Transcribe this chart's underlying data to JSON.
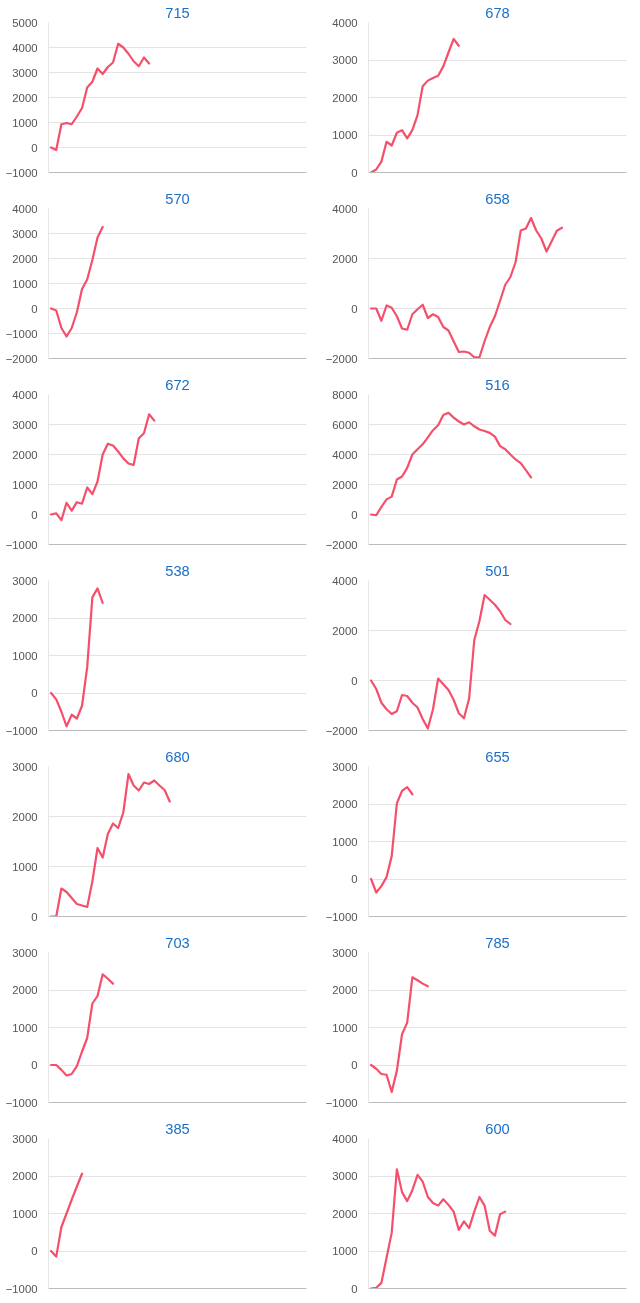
{
  "chart_data": [
    {
      "type": "line",
      "title": "715",
      "grid": "y",
      "tick_labels": "y",
      "ylim": [
        -1000,
        5000
      ],
      "yticks": [
        -1000,
        0,
        1000,
        2000,
        3000,
        4000,
        5000
      ],
      "categories": [
        null,
        null,
        null,
        null,
        null,
        null,
        null,
        null,
        null,
        null,
        null,
        null,
        null,
        null,
        null,
        null,
        null,
        null,
        null,
        null,
        null,
        null,
        null,
        null,
        null,
        null,
        null,
        null,
        null,
        null,
        null,
        null,
        null,
        null,
        null,
        null,
        null,
        null,
        null,
        null,
        null,
        null,
        null,
        null,
        null,
        null,
        null,
        null,
        null,
        null
      ],
      "series": [
        {
          "color": "#f4506c",
          "values": [
            0,
            -100,
            930,
            980,
            930,
            1240,
            1580,
            2400,
            2630,
            3160,
            2940,
            3220,
            3400,
            4150,
            4000,
            3750,
            3450,
            3250,
            3600,
            3360,
            null,
            null,
            null,
            null,
            null,
            null,
            null,
            null,
            null,
            null,
            null,
            null,
            null,
            null,
            null,
            null,
            null,
            null,
            null,
            null,
            null,
            null,
            null,
            null,
            null,
            null,
            null,
            null,
            null,
            null
          ]
        }
      ]
    },
    {
      "type": "line",
      "title": "678",
      "grid": "y",
      "tick_labels": "y",
      "ylim": [
        0,
        4000
      ],
      "yticks": [
        0,
        1000,
        2000,
        3000,
        4000
      ],
      "categories": [
        null,
        null,
        null,
        null,
        null,
        null,
        null,
        null,
        null,
        null,
        null,
        null,
        null,
        null,
        null,
        null,
        null,
        null,
        null,
        null,
        null,
        null,
        null,
        null,
        null,
        null,
        null,
        null,
        null,
        null,
        null,
        null,
        null,
        null,
        null,
        null,
        null,
        null,
        null,
        null,
        null,
        null,
        null,
        null,
        null,
        null,
        null,
        null,
        null,
        null
      ],
      "series": [
        {
          "color": "#f4506c",
          "values": [
            0,
            80,
            290,
            820,
            720,
            1060,
            1130,
            910,
            1130,
            1530,
            2300,
            2450,
            2520,
            2580,
            2830,
            3200,
            3560,
            3380,
            null,
            null,
            null,
            null,
            null,
            null,
            null,
            null,
            null,
            null,
            null,
            null,
            null,
            null,
            null,
            null,
            null,
            null,
            null,
            null,
            null,
            null,
            null,
            null,
            null,
            null,
            null,
            null,
            null,
            null,
            null,
            null
          ]
        }
      ]
    },
    {
      "type": "line",
      "title": "570",
      "grid": "y",
      "tick_labels": "y",
      "ylim": [
        -2000,
        4000
      ],
      "yticks": [
        -2000,
        -1000,
        0,
        1000,
        2000,
        3000,
        4000
      ],
      "categories": [
        null,
        null,
        null,
        null,
        null,
        null,
        null,
        null,
        null,
        null,
        null,
        null,
        null,
        null,
        null,
        null,
        null,
        null,
        null,
        null,
        null,
        null,
        null,
        null,
        null,
        null,
        null,
        null,
        null,
        null,
        null,
        null,
        null,
        null,
        null,
        null,
        null,
        null,
        null,
        null,
        null,
        null,
        null,
        null,
        null,
        null,
        null,
        null,
        null,
        null
      ],
      "series": [
        {
          "color": "#f4506c",
          "values": [
            0,
            -80,
            -780,
            -1120,
            -780,
            -150,
            780,
            1160,
            1940,
            2840,
            3260,
            null,
            null,
            null,
            null,
            null,
            null,
            null,
            null,
            null,
            null,
            null,
            null,
            null,
            null,
            null,
            null,
            null,
            null,
            null,
            null,
            null,
            null,
            null,
            null,
            null,
            null,
            null,
            null,
            null,
            null,
            null,
            null,
            null,
            null,
            null,
            null,
            null,
            null,
            null
          ]
        }
      ]
    },
    {
      "type": "line",
      "title": "658",
      "grid": "y",
      "tick_labels": "y",
      "ylim": [
        -2000,
        4000
      ],
      "yticks": [
        -2000,
        0,
        2000,
        4000
      ],
      "categories": [
        null,
        null,
        null,
        null,
        null,
        null,
        null,
        null,
        null,
        null,
        null,
        null,
        null,
        null,
        null,
        null,
        null,
        null,
        null,
        null,
        null,
        null,
        null,
        null,
        null,
        null,
        null,
        null,
        null,
        null,
        null,
        null,
        null,
        null,
        null,
        null,
        null,
        null,
        null,
        null,
        null,
        null,
        null,
        null,
        null,
        null,
        null,
        null,
        null,
        null
      ],
      "series": [
        {
          "color": "#f4506c",
          "values": [
            0,
            0,
            -490,
            120,
            30,
            -310,
            -800,
            -850,
            -230,
            -30,
            150,
            -380,
            -230,
            -340,
            -740,
            -880,
            -1310,
            -1740,
            -1720,
            -1770,
            -1950,
            -1950,
            -1310,
            -740,
            -310,
            310,
            950,
            1260,
            1850,
            3120,
            3200,
            3620,
            3120,
            2800,
            2280,
            2690,
            3110,
            3230,
            null,
            null,
            null,
            null,
            null,
            null,
            null,
            null,
            null,
            null,
            null,
            null
          ]
        }
      ]
    },
    {
      "type": "line",
      "title": "672",
      "grid": "y",
      "tick_labels": "y",
      "ylim": [
        -1000,
        4000
      ],
      "yticks": [
        -1000,
        0,
        1000,
        2000,
        3000,
        4000
      ],
      "categories": [
        null,
        null,
        null,
        null,
        null,
        null,
        null,
        null,
        null,
        null,
        null,
        null,
        null,
        null,
        null,
        null,
        null,
        null,
        null,
        null,
        null,
        null,
        null,
        null,
        null,
        null,
        null,
        null,
        null,
        null,
        null,
        null,
        null,
        null,
        null,
        null,
        null,
        null,
        null,
        null,
        null,
        null,
        null,
        null,
        null,
        null,
        null,
        null,
        null,
        null
      ],
      "series": [
        {
          "color": "#f4506c",
          "values": [
            0,
            40,
            -190,
            390,
            130,
            410,
            360,
            900,
            680,
            1100,
            2000,
            2360,
            2300,
            2100,
            1870,
            1700,
            1650,
            2540,
            2710,
            3340,
            3130,
            null,
            null,
            null,
            null,
            null,
            null,
            null,
            null,
            null,
            null,
            null,
            null,
            null,
            null,
            null,
            null,
            null,
            null,
            null,
            null,
            null,
            null,
            null,
            null,
            null,
            null,
            null,
            null,
            null
          ]
        }
      ]
    },
    {
      "type": "line",
      "title": "516",
      "grid": "y",
      "tick_labels": "y",
      "ylim": [
        -2000,
        8000
      ],
      "yticks": [
        -2000,
        0,
        2000,
        4000,
        6000,
        8000
      ],
      "categories": [
        null,
        null,
        null,
        null,
        null,
        null,
        null,
        null,
        null,
        null,
        null,
        null,
        null,
        null,
        null,
        null,
        null,
        null,
        null,
        null,
        null,
        null,
        null,
        null,
        null,
        null,
        null,
        null,
        null,
        null,
        null,
        null,
        null,
        null,
        null,
        null,
        null,
        null,
        null,
        null,
        null,
        null,
        null,
        null,
        null,
        null,
        null,
        null,
        null,
        null
      ],
      "series": [
        {
          "color": "#f4506c",
          "values": [
            0,
            -50,
            510,
            1010,
            1190,
            2330,
            2530,
            3110,
            4000,
            4350,
            4680,
            5140,
            5620,
            5950,
            6630,
            6780,
            6460,
            6200,
            6000,
            6150,
            5880,
            5670,
            5570,
            5440,
            5190,
            4560,
            4350,
            4000,
            3670,
            3420,
            2960,
            2480,
            null,
            null,
            null,
            null,
            null,
            null,
            null,
            null,
            null,
            null,
            null,
            null,
            null,
            null,
            null,
            null,
            null,
            null
          ]
        }
      ]
    },
    {
      "type": "line",
      "title": "538",
      "grid": "y",
      "tick_labels": "y",
      "ylim": [
        -1000,
        3000
      ],
      "yticks": [
        -1000,
        0,
        1000,
        2000,
        3000
      ],
      "categories": [
        null,
        null,
        null,
        null,
        null,
        null,
        null,
        null,
        null,
        null,
        null,
        null,
        null,
        null,
        null,
        null,
        null,
        null,
        null,
        null,
        null,
        null,
        null,
        null,
        null,
        null,
        null,
        null,
        null,
        null,
        null,
        null,
        null,
        null,
        null,
        null,
        null,
        null,
        null,
        null,
        null,
        null,
        null,
        null,
        null,
        null,
        null,
        null,
        null,
        null
      ],
      "series": [
        {
          "color": "#f4506c",
          "values": [
            0,
            -170,
            -500,
            -890,
            -580,
            -680,
            -340,
            690,
            2550,
            2790,
            2400,
            null,
            null,
            null,
            null,
            null,
            null,
            null,
            null,
            null,
            null,
            null,
            null,
            null,
            null,
            null,
            null,
            null,
            null,
            null,
            null,
            null,
            null,
            null,
            null,
            null,
            null,
            null,
            null,
            null,
            null,
            null,
            null,
            null,
            null,
            null,
            null,
            null,
            null,
            null
          ]
        }
      ]
    },
    {
      "type": "line",
      "title": "501",
      "grid": "y",
      "tick_labels": "y",
      "ylim": [
        -2000,
        4000
      ],
      "yticks": [
        -2000,
        0,
        2000,
        4000
      ],
      "categories": [
        null,
        null,
        null,
        null,
        null,
        null,
        null,
        null,
        null,
        null,
        null,
        null,
        null,
        null,
        null,
        null,
        null,
        null,
        null,
        null,
        null,
        null,
        null,
        null,
        null,
        null,
        null,
        null,
        null,
        null,
        null,
        null,
        null,
        null,
        null,
        null,
        null,
        null,
        null,
        null,
        null,
        null,
        null,
        null,
        null,
        null,
        null,
        null,
        null,
        null
      ],
      "series": [
        {
          "color": "#f4506c",
          "values": [
            0,
            -340,
            -890,
            -1150,
            -1340,
            -1230,
            -580,
            -620,
            -890,
            -1080,
            -1540,
            -1920,
            -1150,
            80,
            -150,
            -380,
            -770,
            -1310,
            -1510,
            -720,
            1620,
            2380,
            3420,
            3230,
            3030,
            2770,
            2420,
            2260,
            null,
            null,
            null,
            null,
            null,
            null,
            null,
            null,
            null,
            null,
            null,
            null,
            null,
            null,
            null,
            null,
            null,
            null,
            null,
            null,
            null,
            null
          ]
        }
      ]
    },
    {
      "type": "line",
      "title": "680",
      "grid": "y",
      "tick_labels": "y",
      "ylim": [
        0,
        3000
      ],
      "yticks": [
        0,
        1000,
        2000,
        3000
      ],
      "categories": [
        null,
        null,
        null,
        null,
        null,
        null,
        null,
        null,
        null,
        null,
        null,
        null,
        null,
        null,
        null,
        null,
        null,
        null,
        null,
        null,
        null,
        null,
        null,
        null,
        null,
        null,
        null,
        null,
        null,
        null,
        null,
        null,
        null,
        null,
        null,
        null,
        null,
        null,
        null,
        null,
        null,
        null,
        null,
        null,
        null,
        null,
        null,
        null,
        null,
        null
      ],
      "series": [
        {
          "color": "#f4506c",
          "values": [
            0,
            0,
            560,
            490,
            370,
            250,
            220,
            190,
            700,
            1370,
            1180,
            1650,
            1860,
            1770,
            2080,
            2850,
            2620,
            2520,
            2680,
            2650,
            2720,
            2620,
            2530,
            2300,
            null,
            null,
            null,
            null,
            null,
            null,
            null,
            null,
            null,
            null,
            null,
            null,
            null,
            null,
            null,
            null,
            null,
            null,
            null,
            null,
            null,
            null,
            null,
            null,
            null,
            null
          ]
        }
      ]
    },
    {
      "type": "line",
      "title": "655",
      "grid": "y",
      "tick_labels": "y",
      "ylim": [
        -1000,
        3000
      ],
      "yticks": [
        -1000,
        0,
        1000,
        2000,
        3000
      ],
      "categories": [
        null,
        null,
        null,
        null,
        null,
        null,
        null,
        null,
        null,
        null,
        null,
        null,
        null,
        null,
        null,
        null,
        null,
        null,
        null,
        null,
        null,
        null,
        null,
        null,
        null,
        null,
        null,
        null,
        null,
        null,
        null,
        null,
        null,
        null,
        null,
        null,
        null,
        null,
        null,
        null,
        null,
        null,
        null,
        null,
        null,
        null,
        null,
        null,
        null,
        null
      ],
      "series": [
        {
          "color": "#f4506c",
          "values": [
            0,
            -360,
            -190,
            50,
            610,
            2020,
            2350,
            2450,
            2260,
            null,
            null,
            null,
            null,
            null,
            null,
            null,
            null,
            null,
            null,
            null,
            null,
            null,
            null,
            null,
            null,
            null,
            null,
            null,
            null,
            null,
            null,
            null,
            null,
            null,
            null,
            null,
            null,
            null,
            null,
            null,
            null,
            null,
            null,
            null,
            null,
            null,
            null,
            null,
            null,
            null
          ]
        }
      ]
    },
    {
      "type": "line",
      "title": "703",
      "grid": "y",
      "tick_labels": "y",
      "ylim": [
        -1000,
        3000
      ],
      "yticks": [
        -1000,
        0,
        1000,
        2000,
        3000
      ],
      "categories": [
        null,
        null,
        null,
        null,
        null,
        null,
        null,
        null,
        null,
        null,
        null,
        null,
        null,
        null,
        null,
        null,
        null,
        null,
        null,
        null,
        null,
        null,
        null,
        null,
        null,
        null,
        null,
        null,
        null,
        null,
        null,
        null,
        null,
        null,
        null,
        null,
        null,
        null,
        null,
        null,
        null,
        null,
        null,
        null,
        null,
        null,
        null,
        null,
        null,
        null
      ],
      "series": [
        {
          "color": "#f4506c",
          "values": [
            0,
            0,
            -130,
            -280,
            -240,
            -30,
            360,
            720,
            1640,
            1840,
            2420,
            2300,
            2170,
            null,
            null,
            null,
            null,
            null,
            null,
            null,
            null,
            null,
            null,
            null,
            null,
            null,
            null,
            null,
            null,
            null,
            null,
            null,
            null,
            null,
            null,
            null,
            null,
            null,
            null,
            null,
            null,
            null,
            null,
            null,
            null,
            null,
            null,
            null,
            null,
            null
          ]
        }
      ]
    },
    {
      "type": "line",
      "title": "785",
      "grid": "y",
      "tick_labels": "y",
      "ylim": [
        -1000,
        3000
      ],
      "yticks": [
        -1000,
        0,
        1000,
        2000,
        3000
      ],
      "categories": [
        null,
        null,
        null,
        null,
        null,
        null,
        null,
        null,
        null,
        null,
        null,
        null,
        null,
        null,
        null,
        null,
        null,
        null,
        null,
        null,
        null,
        null,
        null,
        null,
        null,
        null,
        null,
        null,
        null,
        null,
        null,
        null,
        null,
        null,
        null,
        null,
        null,
        null,
        null,
        null,
        null,
        null,
        null,
        null,
        null,
        null,
        null,
        null,
        null,
        null
      ],
      "series": [
        {
          "color": "#f4506c",
          "values": [
            0,
            -100,
            -240,
            -260,
            -720,
            -150,
            820,
            1130,
            2340,
            2260,
            2170,
            2100,
            null,
            null,
            null,
            null,
            null,
            null,
            null,
            null,
            null,
            null,
            null,
            null,
            null,
            null,
            null,
            null,
            null,
            null,
            null,
            null,
            null,
            null,
            null,
            null,
            null,
            null,
            null,
            null,
            null,
            null,
            null,
            null,
            null,
            null,
            null,
            null,
            null,
            null
          ]
        }
      ]
    },
    {
      "type": "line",
      "title": "385",
      "grid": "y",
      "tick_labels": "y",
      "ylim": [
        -1000,
        3000
      ],
      "yticks": [
        -1000,
        0,
        1000,
        2000,
        3000
      ],
      "categories": [
        null,
        null,
        null,
        null,
        null,
        null,
        null,
        null,
        null,
        null,
        null,
        null,
        null,
        null,
        null,
        null,
        null,
        null,
        null,
        null,
        null,
        null,
        null,
        null,
        null,
        null,
        null,
        null,
        null,
        null,
        null,
        null,
        null,
        null,
        null,
        null,
        null,
        null,
        null,
        null,
        null,
        null,
        null,
        null,
        null,
        null,
        null,
        null,
        null,
        null
      ],
      "series": [
        {
          "color": "#f4506c",
          "values": [
            0,
            -150,
            640,
            1000,
            1370,
            1720,
            2060,
            null,
            null,
            null,
            null,
            null,
            null,
            null,
            null,
            null,
            null,
            null,
            null,
            null,
            null,
            null,
            null,
            null,
            null,
            null,
            null,
            null,
            null,
            null,
            null,
            null,
            null,
            null,
            null,
            null,
            null,
            null,
            null,
            null,
            null,
            null,
            null,
            null,
            null,
            null,
            null,
            null,
            null,
            null
          ]
        }
      ]
    },
    {
      "type": "line",
      "title": "600",
      "grid": "y",
      "tick_labels": "y",
      "ylim": [
        0,
        4000
      ],
      "yticks": [
        0,
        1000,
        2000,
        3000,
        4000
      ],
      "categories": [
        null,
        null,
        null,
        null,
        null,
        null,
        null,
        null,
        null,
        null,
        null,
        null,
        null,
        null,
        null,
        null,
        null,
        null,
        null,
        null,
        null,
        null,
        null,
        null,
        null,
        null,
        null,
        null,
        null,
        null,
        null,
        null,
        null,
        null,
        null,
        null,
        null,
        null,
        null,
        null,
        null,
        null,
        null,
        null,
        null,
        null,
        null,
        null,
        null,
        null
      ],
      "series": [
        {
          "color": "#f4506c",
          "values": [
            0,
            20,
            150,
            820,
            1490,
            3180,
            2570,
            2330,
            2620,
            3030,
            2850,
            2440,
            2280,
            2210,
            2380,
            2230,
            2050,
            1560,
            1790,
            1610,
            2050,
            2440,
            2210,
            1540,
            1410,
            1980,
            2050,
            null,
            null,
            null,
            null,
            null,
            null,
            null,
            null,
            null,
            null,
            null,
            null,
            null,
            null,
            null,
            null,
            null,
            null,
            null,
            null,
            null,
            null,
            null
          ]
        }
      ]
    }
  ]
}
